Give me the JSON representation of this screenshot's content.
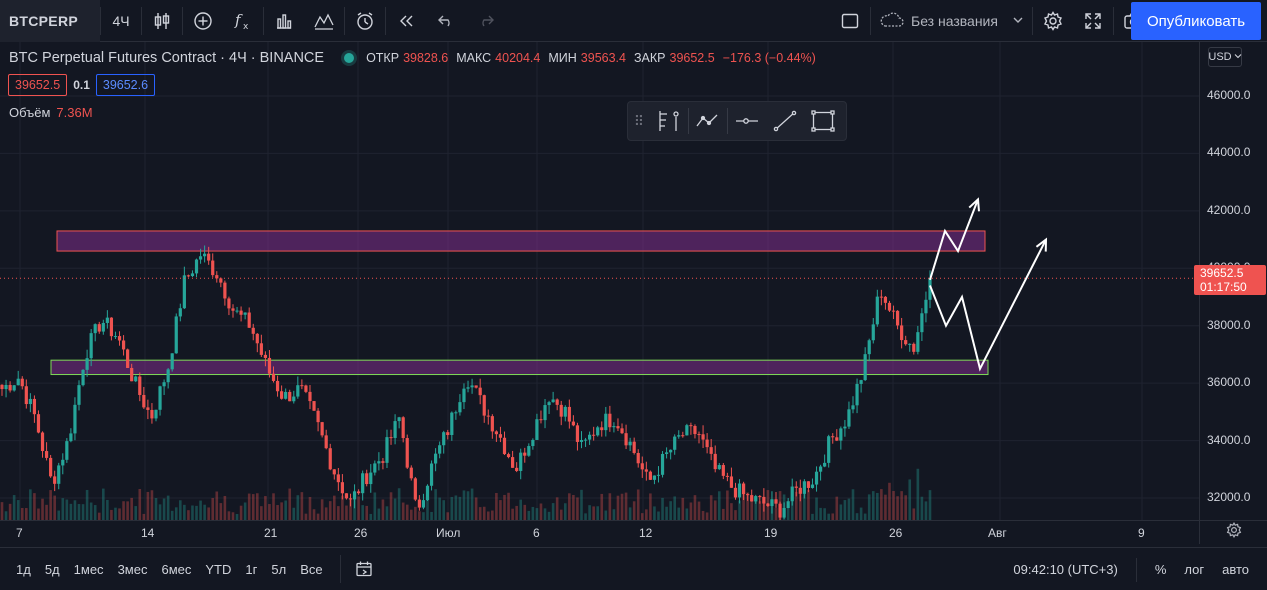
{
  "toolbar": {
    "symbol": "BTCPERP",
    "interval": "4Ч",
    "layout_name": "Без названия",
    "publish_label": "Опубликовать",
    "icons": [
      "candles-icon",
      "indicators-plus-icon",
      "fx-icon",
      "templates-icon",
      "compare-icon",
      "alert-icon",
      "replay-icon",
      "undo-icon",
      "redo-icon",
      "fullscreen-square-icon",
      "cloud-icon",
      "chevron-down-icon",
      "gear-icon",
      "expand-icon",
      "camera-icon"
    ]
  },
  "legend": {
    "title": "BTC Perpetual Futures Contract · 4Ч · BINANCE",
    "open_label": "ОТКР",
    "open": "39828.6",
    "high_label": "МАКС",
    "high": "40204.4",
    "low_label": "МИН",
    "low": "39563.4",
    "close_label": "ЗАКР",
    "close": "39652.5",
    "change": "−176.3 (−0.44%)",
    "sell_price": "39652.5",
    "spread": "0.1",
    "buy_price": "39652.6",
    "volume_label": "Объём",
    "volume": "7.36M"
  },
  "price_axis": {
    "currency": "USD",
    "ticks": [
      "46000.0",
      "44000.0",
      "42000.0",
      "40000.0",
      "38000.0",
      "36000.0",
      "34000.0",
      "32000.0"
    ],
    "last_price": "39652.5",
    "countdown": "01:17:50"
  },
  "time_axis": {
    "ticks": [
      "7",
      "14",
      "21",
      "26",
      "Июл",
      "6",
      "12",
      "19",
      "26",
      "Авг",
      "9"
    ]
  },
  "bottom": {
    "ranges": [
      "1д",
      "5д",
      "1мес",
      "3мес",
      "6мес",
      "YTD",
      "1г",
      "5л",
      "Все"
    ],
    "clock": "09:42:10 (UTC+3)",
    "percent_label": "%",
    "log_label": "лог",
    "auto_label": "авто"
  },
  "colors": {
    "up": "#26a69a",
    "down": "#ef5350",
    "accent": "#2962ff",
    "zone": "#5c2a6e"
  },
  "chart_data": {
    "type": "candlestick",
    "title": "BTC Perpetual Futures Contract · 4Ч · BINANCE",
    "ylim": [
      31500,
      47500
    ],
    "y_ticks": [
      46000,
      44000,
      42000,
      40000,
      38000,
      36000,
      34000,
      32000
    ],
    "x_ticks": [
      "7",
      "14",
      "21",
      "26",
      "Июл",
      "6",
      "12",
      "19",
      "26",
      "Авг",
      "9"
    ],
    "closes_approx": [
      35800,
      36200,
      34800,
      32500,
      34000,
      37000,
      38200,
      37600,
      36000,
      34800,
      36500,
      39500,
      40500,
      39800,
      38500,
      38000,
      36500,
      35500,
      35800,
      34600,
      33000,
      31800,
      32800,
      33500,
      34800,
      31500,
      33200,
      34500,
      36300,
      35200,
      34200,
      33000,
      34300,
      35600,
      35000,
      33700,
      34600,
      34800,
      33800,
      32500,
      33400,
      34200,
      34300,
      33000,
      32400,
      32000,
      31800,
      31600,
      32300,
      32700,
      34000,
      34800,
      36500,
      39300,
      38000,
      37200,
      39600
    ],
    "last_price": 39652.5,
    "zones": [
      {
        "from": 40600,
        "to": 41300,
        "label": ""
      },
      {
        "from": 36300,
        "to": 36800,
        "label": ""
      }
    ],
    "projection_lines": [
      [
        [
          39600,
          0
        ],
        [
          41300,
          0
        ],
        [
          40600,
          0
        ],
        [
          42400,
          0
        ]
      ],
      [
        [
          39400,
          0
        ],
        [
          38000,
          0
        ],
        [
          39000,
          0
        ],
        [
          36500,
          0
        ],
        [
          41000,
          0
        ]
      ]
    ]
  }
}
